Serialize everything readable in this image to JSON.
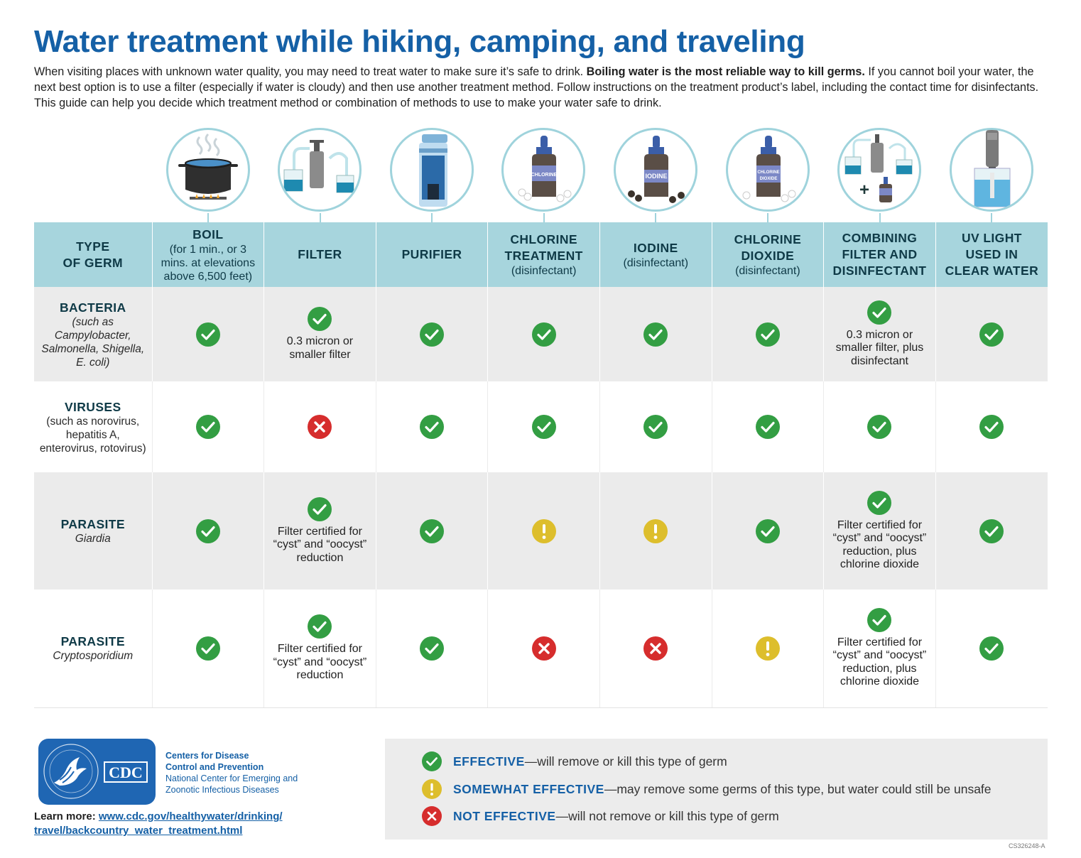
{
  "header": {
    "title": "Water treatment while hiking, camping, and traveling",
    "intro_part1": "When visiting places with unknown water quality, you may need to treat water to make sure it’s safe to drink. ",
    "intro_bold": "Boiling water is the most reliable way to kill germs.",
    "intro_part2": " If you cannot boil your water, the next best option is to use a filter (especially if water is cloudy) and then use another treatment method. Follow instructions on the treatment product’s label, including the contact time for disinfectants. This guide can help you decide which treatment method or combination of methods to use to make your water safe to drink."
  },
  "icons": {
    "chlorine_label": "CHLORINE",
    "iodine_label": "IODINE",
    "chlorine_dioxide_label_1": "CHLORINE",
    "chlorine_dioxide_label_2": "DIOXIDE",
    "plus": "+"
  },
  "table": {
    "germ_header": [
      "TYPE",
      "OF GERM"
    ],
    "columns": [
      {
        "name": "BOIL",
        "sub": "(for 1 min., or 3 mins. at elevations above 6,500 feet)"
      },
      {
        "name": "FILTER",
        "sub": ""
      },
      {
        "name": "PURIFIER",
        "sub": ""
      },
      {
        "name": "CHLORINE TREATMENT",
        "sub": "(disinfectant)"
      },
      {
        "name": "IODINE",
        "sub": "(disinfectant)"
      },
      {
        "name": "CHLORINE DIOXIDE",
        "sub": "(disinfectant)"
      },
      {
        "name": "COMBINING FILTER AND DISINFECTANT",
        "sub": ""
      },
      {
        "name": "UV LIGHT USED IN CLEAR WATER",
        "sub": ""
      }
    ],
    "rows": [
      {
        "name": "BACTERIA",
        "desc": "(such as Campylobacter, Salmonella, Shigella, E. coli)",
        "cells": [
          {
            "status": "effective",
            "note": ""
          },
          {
            "status": "effective",
            "note": "0.3 micron or smaller filter"
          },
          {
            "status": "effective",
            "note": ""
          },
          {
            "status": "effective",
            "note": ""
          },
          {
            "status": "effective",
            "note": ""
          },
          {
            "status": "effective",
            "note": ""
          },
          {
            "status": "effective",
            "note": "0.3 micron or smaller filter, plus disinfectant"
          },
          {
            "status": "effective",
            "note": ""
          }
        ]
      },
      {
        "name": "VIRUSES",
        "desc": "(such as norovirus, hepatitis A, enterovirus, rotovirus)",
        "cells": [
          {
            "status": "effective",
            "note": ""
          },
          {
            "status": "not",
            "note": ""
          },
          {
            "status": "effective",
            "note": ""
          },
          {
            "status": "effective",
            "note": ""
          },
          {
            "status": "effective",
            "note": ""
          },
          {
            "status": "effective",
            "note": ""
          },
          {
            "status": "effective",
            "note": ""
          },
          {
            "status": "effective",
            "note": ""
          }
        ]
      },
      {
        "name": "PARASITE",
        "desc": "Giardia",
        "cells": [
          {
            "status": "effective",
            "note": ""
          },
          {
            "status": "effective",
            "note": "Filter certified for “cyst” and “oocyst” reduction"
          },
          {
            "status": "effective",
            "note": ""
          },
          {
            "status": "somewhat",
            "note": ""
          },
          {
            "status": "somewhat",
            "note": ""
          },
          {
            "status": "effective",
            "note": ""
          },
          {
            "status": "effective",
            "note": "Filter certified for “cyst” and “oocyst” reduction, plus chlorine dioxide"
          },
          {
            "status": "effective",
            "note": ""
          }
        ]
      },
      {
        "name": "PARASITE",
        "desc": "Cryptosporidium",
        "cells": [
          {
            "status": "effective",
            "note": ""
          },
          {
            "status": "effective",
            "note": "Filter certified for “cyst” and “oocyst” reduction"
          },
          {
            "status": "effective",
            "note": ""
          },
          {
            "status": "not",
            "note": ""
          },
          {
            "status": "not",
            "note": ""
          },
          {
            "status": "somewhat",
            "note": ""
          },
          {
            "status": "effective",
            "note": "Filter certified for “cyst” and “oocyst” reduction, plus chlorine dioxide"
          },
          {
            "status": "effective",
            "note": ""
          }
        ]
      }
    ]
  },
  "footer": {
    "logo_text": "CDC",
    "agency_line1": "Centers for Disease",
    "agency_line2": "Control and Prevention",
    "agency_line3": "National Center for Emerging and",
    "agency_line4": "Zoonotic Infectious Diseases",
    "learn_label": "Learn more: ",
    "learn_url_line1": "www.cdc.gov/healthywater/drinking/",
    "learn_url_line2": "travel/backcountry_water_treatment.html",
    "code": "CS326248-A"
  },
  "legend": {
    "effective_term": "EFFECTIVE",
    "effective_desc": "—will remove or kill this type of germ",
    "somewhat_term": "SOMEWHAT EFFECTIVE",
    "somewhat_desc": "—may remove some germs of this type, but water could still be unsafe",
    "not_term": "NOT EFFECTIVE",
    "not_desc": "—will not remove or kill this type of germ"
  },
  "colors": {
    "title_blue": "#1560a6",
    "header_teal": "#a7d5dd",
    "effective_green": "#339e43",
    "somewhat_yellow": "#ddbe2c",
    "not_red": "#d62d2d"
  }
}
